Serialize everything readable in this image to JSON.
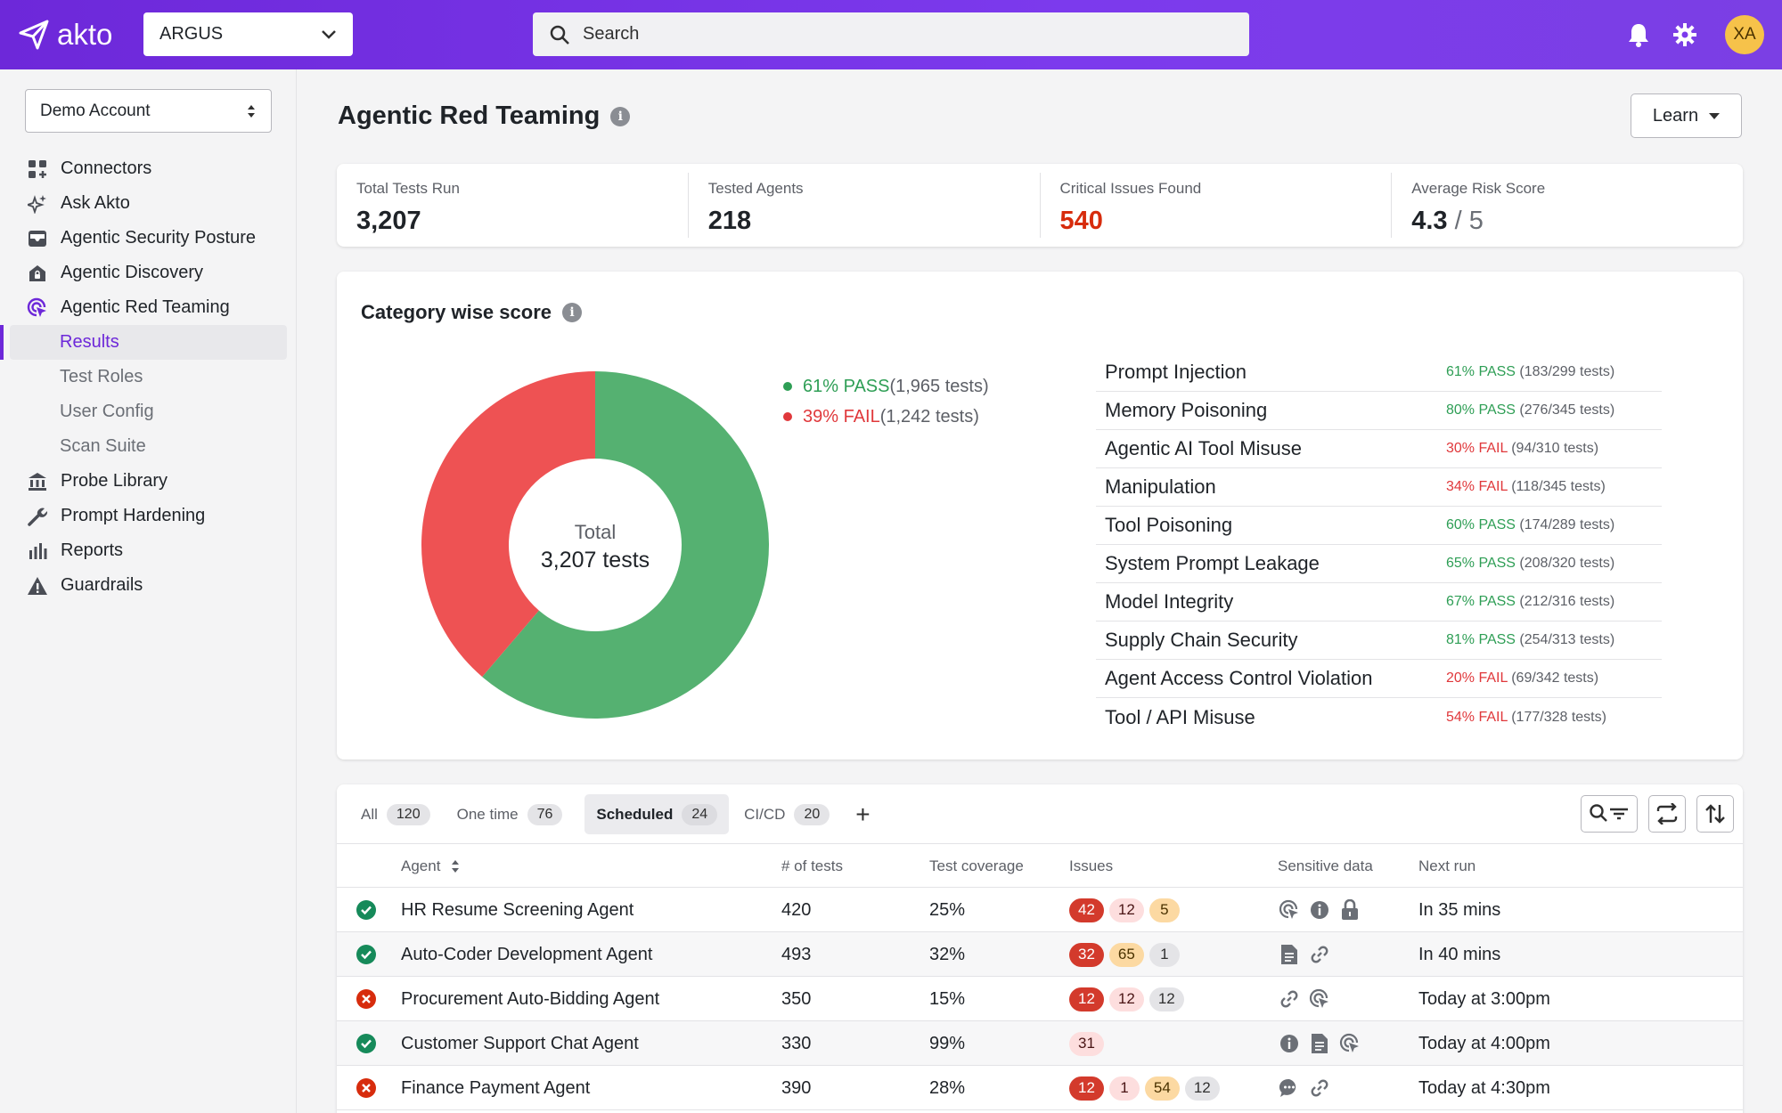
{
  "topbar": {
    "logo_text": "akto",
    "org_selector": "ARGUS",
    "search_placeholder": "Search",
    "avatar_initials": "XA",
    "icons": [
      "bell-icon",
      "gear-icon"
    ]
  },
  "sidebar": {
    "account": "Demo Account",
    "items": [
      {
        "label": "Connectors",
        "icon": "grid-icon"
      },
      {
        "label": "Ask Akto",
        "icon": "sparkle-icon"
      },
      {
        "label": "Agentic Security Posture",
        "icon": "inbox-icon"
      },
      {
        "label": "Agentic Discovery",
        "icon": "lock-building-icon"
      },
      {
        "label": "Agentic Red Teaming",
        "icon": "target-cursor-icon"
      }
    ],
    "sub_items": [
      {
        "label": "Results",
        "active": true
      },
      {
        "label": "Test Roles"
      },
      {
        "label": "User Config"
      },
      {
        "label": "Scan Suite"
      }
    ],
    "items_after": [
      {
        "label": "Probe Library",
        "icon": "library-icon"
      },
      {
        "label": "Prompt Hardening",
        "icon": "wrench-icon"
      },
      {
        "label": "Reports",
        "icon": "bar-chart-icon"
      },
      {
        "label": "Guardrails",
        "icon": "warning-icon"
      }
    ]
  },
  "page": {
    "title": "Agentic Red Teaming",
    "learn_label": "Learn"
  },
  "stats": [
    {
      "label": "Total Tests Run",
      "value": "3,207"
    },
    {
      "label": "Tested Agents",
      "value": "218"
    },
    {
      "label": "Critical Issues Found",
      "value": "540"
    },
    {
      "label": "Average Risk Score",
      "value": "4.3",
      "denominator": " / 5"
    }
  ],
  "category": {
    "title": "Category wise score",
    "donut_center_label": "Total",
    "donut_center_value": "3,207 tests",
    "legend": [
      {
        "status": "61% PASS",
        "detail": " (1,965 tests)",
        "color": "#55b171"
      },
      {
        "status": "39% FAIL",
        "detail": " (1,242 tests)",
        "color": "#ee5253"
      }
    ],
    "rows": [
      {
        "name": "Prompt Injection",
        "status": "61% PASS",
        "detail": " (183/299 tests)",
        "kind": "pass"
      },
      {
        "name": "Memory Poisoning",
        "status": "80% PASS",
        "detail": " (276/345 tests)",
        "kind": "pass"
      },
      {
        "name": "Agentic AI Tool Misuse",
        "status": "30% FAIL",
        "detail": " (94/310 tests)",
        "kind": "fail"
      },
      {
        "name": "Manipulation",
        "status": "34% FAIL",
        "detail": " (118/345 tests)",
        "kind": "fail"
      },
      {
        "name": "Tool Poisoning",
        "status": "60% PASS",
        "detail": " (174/289 tests)",
        "kind": "pass"
      },
      {
        "name": "System Prompt Leakage",
        "status": "65% PASS",
        "detail": " (208/320 tests)",
        "kind": "pass"
      },
      {
        "name": "Model Integrity",
        "status": "67% PASS",
        "detail": " (212/316 tests)",
        "kind": "pass"
      },
      {
        "name": "Supply Chain Security",
        "status": "81% PASS",
        "detail": " (254/313 tests)",
        "kind": "pass"
      },
      {
        "name": "Agent Access Control Violation",
        "status": "20% FAIL",
        "detail": " (69/342 tests)",
        "kind": "fail"
      },
      {
        "name": "Tool / API Misuse",
        "status": "54% FAIL",
        "detail": " (177/328 tests)",
        "kind": "fail"
      }
    ]
  },
  "chart_data": {
    "type": "pie",
    "categories": [
      "PASS",
      "FAIL"
    ],
    "values": [
      1965,
      1242
    ],
    "colors": [
      "#55b171",
      "#ee5253"
    ],
    "center_text": "Total 3,207 tests"
  },
  "table": {
    "tabs": [
      {
        "label": "All",
        "count": "120"
      },
      {
        "label": "One time",
        "count": "76"
      },
      {
        "label": "Scheduled",
        "count": "24",
        "selected": true
      },
      {
        "label": "CI/CD",
        "count": "20"
      }
    ],
    "add_tab": "+",
    "columns": {
      "agent": "Agent",
      "tests": "# of tests",
      "coverage": "Test coverage",
      "issues": "Issues",
      "sensitive": "Sensitive data",
      "next_run": "Next run"
    },
    "rows": [
      {
        "status": "ok",
        "agent": "HR Resume Screening Agent",
        "tests": "420",
        "coverage": "25%",
        "issues": [
          {
            "v": "42",
            "k": "critical"
          },
          {
            "v": "12",
            "k": "high"
          },
          {
            "v": "5",
            "k": "medium"
          }
        ],
        "sensitive": [
          "target-cursor-icon",
          "info-icon",
          "lock-icon"
        ],
        "next_run": "In 35 mins"
      },
      {
        "status": "ok",
        "agent": "Auto-Coder Development Agent",
        "tests": "493",
        "coverage": "32%",
        "issues": [
          {
            "v": "32",
            "k": "critical"
          },
          {
            "v": "65",
            "k": "medium"
          },
          {
            "v": "1",
            "k": "low"
          }
        ],
        "sensitive": [
          "document-icon",
          "link-icon"
        ],
        "next_run": "In 40 mins"
      },
      {
        "status": "err",
        "agent": "Procurement Auto-Bidding Agent",
        "tests": "350",
        "coverage": "15%",
        "issues": [
          {
            "v": "12",
            "k": "critical"
          },
          {
            "v": "12",
            "k": "high"
          },
          {
            "v": "12",
            "k": "low"
          }
        ],
        "sensitive": [
          "link-icon",
          "target-cursor-icon"
        ],
        "next_run": "Today at 3:00pm"
      },
      {
        "status": "ok",
        "agent": "Customer Support Chat Agent",
        "tests": "330",
        "coverage": "99%",
        "issues": [
          {
            "v": "31",
            "k": "high"
          }
        ],
        "sensitive": [
          "info-icon",
          "document-icon",
          "target-cursor-icon"
        ],
        "next_run": "Today at 4:00pm"
      },
      {
        "status": "err",
        "agent": "Finance Payment Agent",
        "tests": "390",
        "coverage": "28%",
        "issues": [
          {
            "v": "12",
            "k": "critical"
          },
          {
            "v": "1",
            "k": "high"
          },
          {
            "v": "54",
            "k": "medium"
          },
          {
            "v": "12",
            "k": "low"
          }
        ],
        "sensitive": [
          "chat-icon",
          "link-icon"
        ],
        "next_run": "Today at 4:30pm"
      }
    ]
  }
}
